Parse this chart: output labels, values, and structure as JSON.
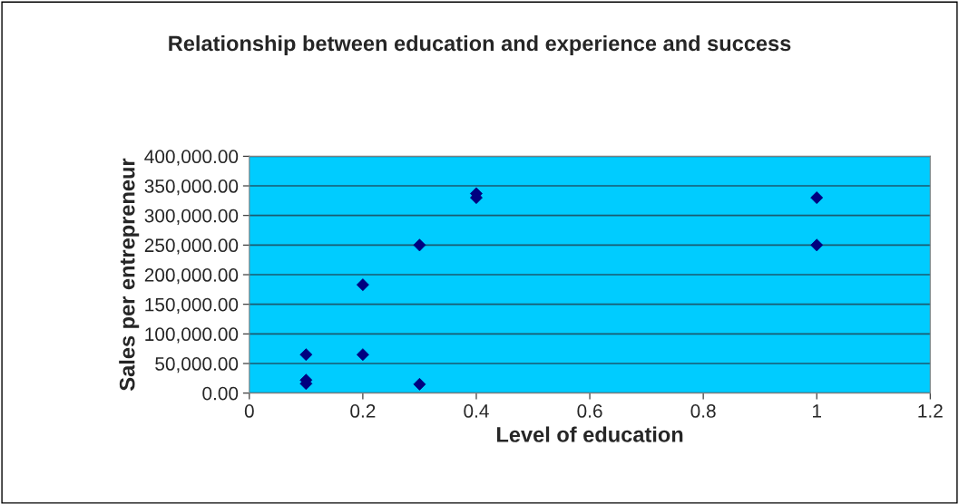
{
  "chart_data": {
    "type": "scatter",
    "title": "Relationship between education and experience and success",
    "xlabel": "Level of education",
    "ylabel": "Sales per entrepreneur",
    "x": [
      0.1,
      0.1,
      0.1,
      0.2,
      0.2,
      0.3,
      0.3,
      0.4,
      0.4,
      1.0,
      1.0
    ],
    "values": [
      65000,
      22000,
      16000,
      65000,
      183000,
      250000,
      15000,
      330000,
      337000,
      330000,
      250000
    ],
    "color": "#000080",
    "marker": "diamond",
    "xlim": [
      0,
      1.2
    ],
    "xticks": [
      0,
      0.2,
      0.4,
      0.6,
      0.8,
      1,
      1.2
    ],
    "ylim": [
      0,
      400000
    ],
    "yticks": [
      {
        "value": 0,
        "label": "0.00"
      },
      {
        "value": 50000,
        "label": "50,000.00"
      },
      {
        "value": 100000,
        "label": "100,000.00"
      },
      {
        "value": 150000,
        "label": "150,000.00"
      },
      {
        "value": 200000,
        "label": "200,000.00"
      },
      {
        "value": 250000,
        "label": "250,000.00"
      },
      {
        "value": 300000,
        "label": "300,000.00"
      },
      {
        "value": 350000,
        "label": "350,000.00"
      },
      {
        "value": 400000,
        "label": "400,000.00"
      }
    ],
    "grid": "y"
  }
}
